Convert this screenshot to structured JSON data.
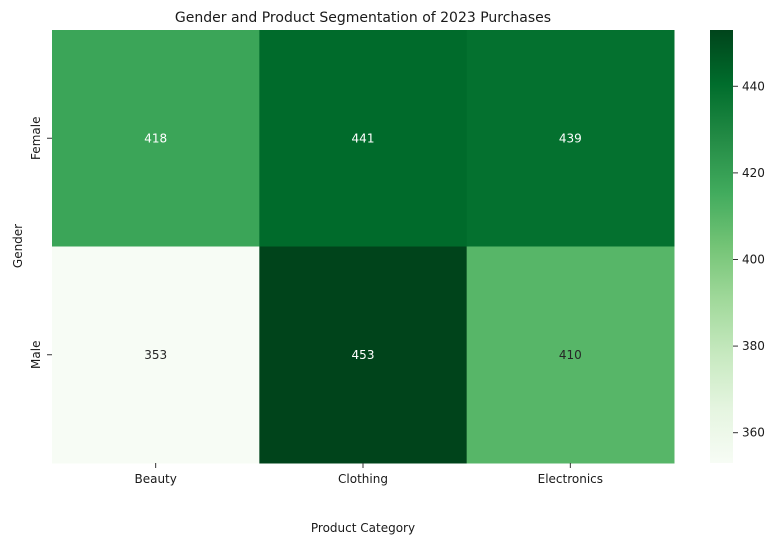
{
  "chart_data": {
    "type": "heatmap",
    "title": "Gender and Product Segmentation of 2023 Purchases",
    "xlabel": "Product Category",
    "ylabel": "Gender",
    "x_categories": [
      "Beauty",
      "Clothing",
      "Electronics"
    ],
    "y_categories": [
      "Female",
      "Male"
    ],
    "values": [
      [
        418,
        441,
        439
      ],
      [
        353,
        453,
        410
      ]
    ],
    "colormap": "Greens",
    "color_range": [
      353,
      453
    ],
    "colorbar_ticks": [
      360,
      380,
      400,
      420,
      440
    ],
    "annotation_colors": {
      "light": "#ffffff",
      "dark": "#262626"
    }
  }
}
